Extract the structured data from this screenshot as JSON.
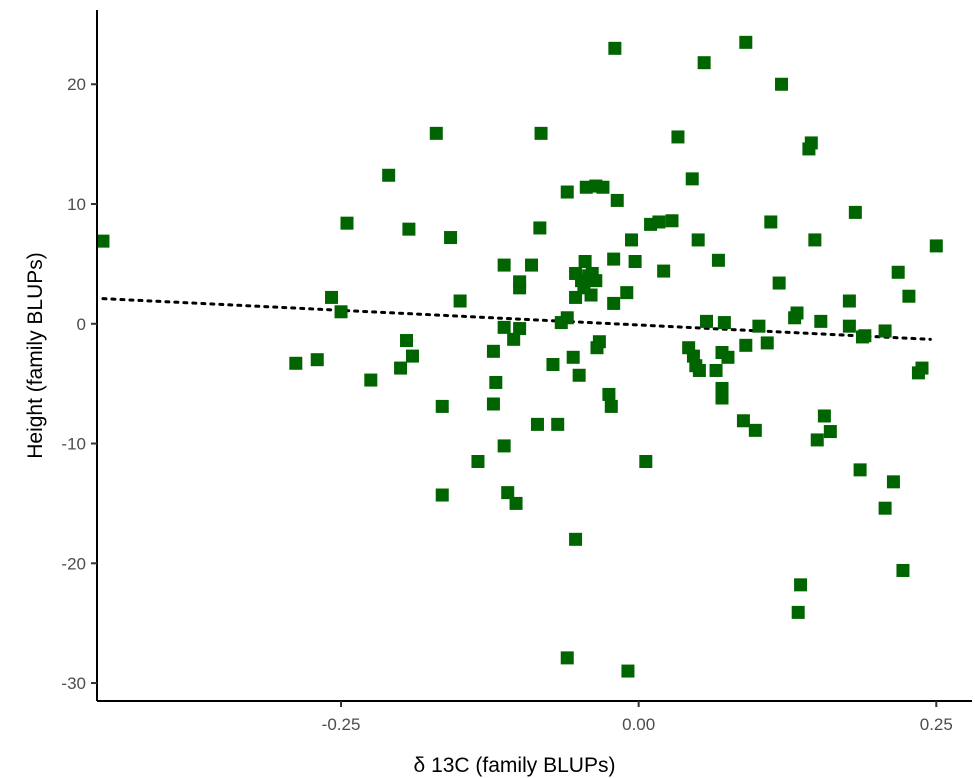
{
  "chart_data": {
    "type": "scatter",
    "xlabel": "δ 13C (family BLUPs)",
    "ylabel": "Height (family BLUPs)",
    "xlim": [
      -0.455,
      0.28
    ],
    "ylim": [
      -31.5,
      26.2
    ],
    "xticks": [
      -0.25,
      0.0,
      0.25
    ],
    "xtick_labels": [
      "-0.25",
      "0.00",
      "0.25"
    ],
    "yticks": [
      -30,
      -20,
      -10,
      0,
      10,
      20
    ],
    "ytick_labels": [
      "-30",
      "-20",
      "-10",
      "0",
      "10",
      "20"
    ],
    "grid": false,
    "legend": "none",
    "point_color": "#006400",
    "trend_color": "#000000",
    "trend": {
      "style": "dotted",
      "x": [
        -0.45,
        0.245
      ],
      "y": [
        2.1,
        -1.3
      ]
    },
    "points": [
      [
        -0.45,
        6.9
      ],
      [
        -0.288,
        -3.3
      ],
      [
        -0.27,
        -3.0
      ],
      [
        -0.258,
        2.2
      ],
      [
        -0.25,
        1.0
      ],
      [
        -0.245,
        8.4
      ],
      [
        -0.225,
        -4.7
      ],
      [
        -0.21,
        12.4
      ],
      [
        -0.2,
        -3.7
      ],
      [
        -0.195,
        -1.4
      ],
      [
        -0.193,
        7.9
      ],
      [
        -0.19,
        -2.7
      ],
      [
        -0.17,
        15.9
      ],
      [
        -0.165,
        -6.9
      ],
      [
        -0.165,
        -14.3
      ],
      [
        -0.158,
        7.2
      ],
      [
        -0.15,
        1.9
      ],
      [
        -0.135,
        -11.5
      ],
      [
        -0.122,
        -2.3
      ],
      [
        -0.122,
        -6.7
      ],
      [
        -0.12,
        -4.9
      ],
      [
        -0.113,
        4.9
      ],
      [
        -0.113,
        -0.3
      ],
      [
        -0.113,
        -10.2
      ],
      [
        -0.11,
        -14.1
      ],
      [
        -0.105,
        -1.3
      ],
      [
        -0.103,
        -15.0
      ],
      [
        -0.1,
        3.0
      ],
      [
        -0.1,
        3.5
      ],
      [
        -0.1,
        -0.4
      ],
      [
        -0.09,
        4.9
      ],
      [
        -0.085,
        -8.4
      ],
      [
        -0.083,
        8.0
      ],
      [
        -0.082,
        15.9
      ],
      [
        -0.072,
        -3.4
      ],
      [
        -0.068,
        -8.4
      ],
      [
        -0.065,
        0.1
      ],
      [
        -0.06,
        11.0
      ],
      [
        -0.06,
        0.5
      ],
      [
        -0.06,
        -27.9
      ],
      [
        -0.055,
        -2.8
      ],
      [
        -0.053,
        2.2
      ],
      [
        -0.053,
        4.2
      ],
      [
        -0.053,
        -18.0
      ],
      [
        -0.05,
        -4.3
      ],
      [
        -0.048,
        3.6
      ],
      [
        -0.046,
        3.0
      ],
      [
        -0.045,
        5.2
      ],
      [
        -0.044,
        11.4
      ],
      [
        -0.042,
        4.0
      ],
      [
        -0.04,
        2.4
      ],
      [
        -0.039,
        4.2
      ],
      [
        -0.036,
        3.6
      ],
      [
        -0.036,
        11.5
      ],
      [
        -0.035,
        -2.0
      ],
      [
        -0.033,
        -1.5
      ],
      [
        -0.03,
        11.4
      ],
      [
        -0.025,
        -5.9
      ],
      [
        -0.023,
        -6.9
      ],
      [
        -0.021,
        5.4
      ],
      [
        -0.021,
        1.7
      ],
      [
        -0.02,
        23.0
      ],
      [
        -0.018,
        10.3
      ],
      [
        -0.01,
        2.6
      ],
      [
        -0.009,
        -29.0
      ],
      [
        -0.006,
        7.0
      ],
      [
        -0.003,
        5.2
      ],
      [
        0.006,
        -11.5
      ],
      [
        0.01,
        8.3
      ],
      [
        0.017,
        8.5
      ],
      [
        0.021,
        4.4
      ],
      [
        0.028,
        8.6
      ],
      [
        0.033,
        15.6
      ],
      [
        0.042,
        -2.0
      ],
      [
        0.045,
        12.1
      ],
      [
        0.046,
        -2.7
      ],
      [
        0.048,
        -3.5
      ],
      [
        0.05,
        7.0
      ],
      [
        0.051,
        -3.9
      ],
      [
        0.055,
        21.8
      ],
      [
        0.057,
        0.2
      ],
      [
        0.065,
        -3.9
      ],
      [
        0.067,
        5.3
      ],
      [
        0.07,
        -2.4
      ],
      [
        0.07,
        -5.4
      ],
      [
        0.07,
        -6.2
      ],
      [
        0.072,
        0.1
      ],
      [
        0.075,
        -2.8
      ],
      [
        0.088,
        -8.1
      ],
      [
        0.09,
        23.5
      ],
      [
        0.09,
        -1.8
      ],
      [
        0.098,
        -8.9
      ],
      [
        0.101,
        -0.2
      ],
      [
        0.108,
        -1.6
      ],
      [
        0.111,
        8.5
      ],
      [
        0.118,
        3.4
      ],
      [
        0.12,
        20.0
      ],
      [
        0.131,
        0.5
      ],
      [
        0.133,
        0.9
      ],
      [
        0.134,
        -24.1
      ],
      [
        0.136,
        -21.8
      ],
      [
        0.143,
        14.6
      ],
      [
        0.145,
        15.1
      ],
      [
        0.148,
        7.0
      ],
      [
        0.15,
        -9.7
      ],
      [
        0.153,
        0.2
      ],
      [
        0.156,
        -7.7
      ],
      [
        0.161,
        -9.0
      ],
      [
        0.177,
        -0.2
      ],
      [
        0.177,
        1.9
      ],
      [
        0.182,
        9.3
      ],
      [
        0.186,
        -12.2
      ],
      [
        0.188,
        -1.1
      ],
      [
        0.19,
        -1.0
      ],
      [
        0.207,
        -0.6
      ],
      [
        0.207,
        -15.4
      ],
      [
        0.214,
        -13.2
      ],
      [
        0.218,
        4.3
      ],
      [
        0.222,
        -20.6
      ],
      [
        0.227,
        2.3
      ],
      [
        0.235,
        -4.1
      ],
      [
        0.238,
        -3.7
      ],
      [
        0.25,
        6.5
      ]
    ]
  }
}
